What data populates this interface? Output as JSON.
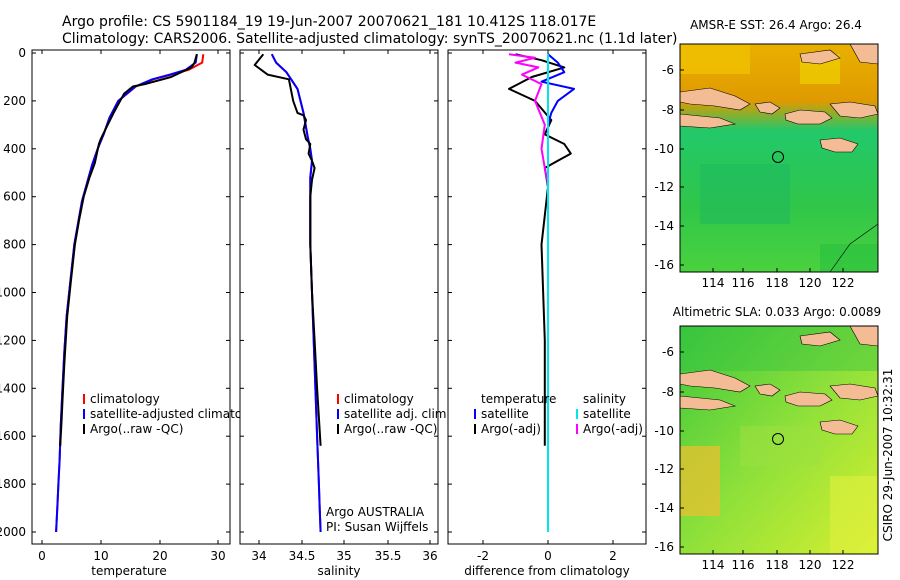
{
  "title_line1": "Argo profile: CS 5901184_19 19-Jun-2007 20070621_181 10.412S 118.017E",
  "title_line2": "Climatology: CARS2006. Satellite-adjusted climatology: synTS_20070621.nc (1.1d later)",
  "side_label": "CSIRO 29-Jun-2007 10:32:31",
  "colors": {
    "climatology": "#ff0000",
    "satellite": "#0000ff",
    "argo": "#000000",
    "sat_salinity": "#00e5ee",
    "argo_salinity": "#ff00ff",
    "land": "#f4bc94"
  },
  "chart_data": [
    {
      "type": "line",
      "xlabel": "temperature",
      "xticks": [
        "0",
        "10",
        "20",
        "30"
      ],
      "yticks": [
        "0",
        "200",
        "400",
        "600",
        "800",
        "1000",
        "1200",
        "1400",
        "1600",
        "1800",
        "2000"
      ],
      "xlim": [
        -3,
        32
      ],
      "ylim": [
        2050,
        0
      ],
      "legend": [
        "climatology",
        "satellite-adjusted climatology",
        "Argo(..raw -QC)"
      ],
      "series": [
        {
          "name": "climatology",
          "x": [
            27.5,
            27.3,
            25.0,
            22.0,
            19.0,
            16.0,
            13.0,
            11.5,
            10.5,
            9.5,
            8.5,
            7.6,
            6.8,
            5.5,
            4.8,
            4.2,
            3.8,
            3.5,
            3.2,
            3.0,
            2.8,
            2.6,
            2.4
          ],
          "y": [
            5,
            40,
            70,
            90,
            110,
            140,
            200,
            270,
            340,
            400,
            470,
            550,
            620,
            800,
            960,
            1100,
            1250,
            1400,
            1550,
            1700,
            1800,
            1900,
            2000
          ]
        },
        {
          "name": "satellite-adjusted climatology",
          "x": [
            26.4,
            26.2,
            24.5,
            21.8,
            18.8,
            15.9,
            13.0,
            11.5,
            10.5,
            9.5,
            8.5,
            7.6,
            6.8,
            5.5,
            4.8,
            4.2,
            3.8,
            3.5,
            3.2,
            3.0,
            2.8,
            2.6,
            2.4
          ],
          "y": [
            5,
            40,
            70,
            90,
            110,
            140,
            200,
            270,
            340,
            400,
            470,
            550,
            620,
            800,
            960,
            1100,
            1250,
            1400,
            1550,
            1700,
            1800,
            1900,
            2000
          ]
        },
        {
          "name": "Argo(..raw -QC)",
          "x": [
            26.4,
            26.0,
            25.5,
            22.0,
            17.5,
            15.5,
            14.0,
            12.2,
            11.2,
            10.0,
            9.7,
            9.0,
            8.1,
            7.1,
            6.3,
            5.6,
            4.9,
            4.3,
            3.8,
            3.5,
            3.3,
            3.1
          ],
          "y": [
            5,
            40,
            60,
            100,
            130,
            140,
            170,
            250,
            300,
            360,
            380,
            460,
            520,
            600,
            700,
            800,
            960,
            1100,
            1300,
            1450,
            1550,
            1640
          ]
        }
      ]
    },
    {
      "type": "line",
      "xlabel": "salinity",
      "xticks": [
        "34",
        "34.5",
        "35",
        "35.5",
        "36"
      ],
      "xlim": [
        33.8,
        36.2
      ],
      "ylim": [
        2050,
        0
      ],
      "legend": [
        "climatology",
        "satellite adj. clim.",
        "Argo(..raw -QC)"
      ],
      "series": [
        {
          "name": "climatology",
          "x": [
            34.15,
            34.2,
            34.32,
            34.45,
            34.52,
            34.57,
            34.6,
            34.62,
            34.6,
            34.6,
            34.6,
            34.62,
            34.64,
            34.66,
            34.68,
            34.7,
            34.71,
            34.72
          ],
          "y": [
            5,
            40,
            80,
            150,
            250,
            350,
            400,
            450,
            520,
            600,
            800,
            1000,
            1200,
            1400,
            1600,
            1800,
            1900,
            2000
          ]
        },
        {
          "name": "satellite adj. clim.",
          "x": [
            34.15,
            34.2,
            34.32,
            34.45,
            34.52,
            34.57,
            34.6,
            34.62,
            34.6,
            34.6,
            34.6,
            34.62,
            34.64,
            34.66,
            34.68,
            34.7,
            34.71,
            34.72
          ],
          "y": [
            5,
            40,
            80,
            150,
            250,
            350,
            400,
            450,
            520,
            600,
            800,
            1000,
            1200,
            1400,
            1600,
            1800,
            1900,
            2000
          ]
        },
        {
          "name": "Argo(..raw -QC)",
          "x": [
            34.05,
            33.95,
            34.1,
            34.35,
            34.4,
            34.45,
            34.52,
            34.55,
            34.52,
            34.55,
            34.6,
            34.58,
            34.62,
            34.65,
            34.62,
            34.6,
            34.6,
            34.62,
            34.65,
            34.68,
            34.72
          ],
          "y": [
            5,
            50,
            90,
            110,
            200,
            250,
            260,
            280,
            320,
            360,
            380,
            420,
            450,
            480,
            530,
            600,
            800,
            1000,
            1200,
            1400,
            1640
          ]
        }
      ],
      "annotation": [
        "Argo AUSTRALIA",
        "PI: Susan Wijffels"
      ]
    },
    {
      "type": "line",
      "xlabel": "difference from climatology",
      "xticks": [
        "-2",
        "0",
        "2"
      ],
      "xlim": [
        -3,
        3
      ],
      "ylim": [
        2050,
        0
      ],
      "legend_left": [
        "temperature",
        "satellite",
        "Argo(-adj)"
      ],
      "legend_right": [
        "salinity",
        "satellite",
        "Argo(-adj)"
      ],
      "series": [
        {
          "name": "satellite",
          "x": [
            0,
            0.3,
            0.5,
            -0.2,
            0.8,
            0.3,
            0.1,
            0,
            0
          ],
          "y": [
            5,
            40,
            80,
            120,
            150,
            200,
            250,
            300,
            2000
          ]
        },
        {
          "name": "satellite",
          "x": [
            0,
            0,
            0,
            0
          ],
          "y": [
            5,
            600,
            1200,
            2000
          ]
        },
        {
          "name": "Argo(-adj)",
          "x": [
            -1.0,
            -0.2,
            0.5,
            -0.5,
            -1.2,
            -0.4,
            0.1,
            -0.1,
            0.5,
            0.7,
            0.3,
            -0.1,
            0,
            -0.2,
            -0.1,
            -0.1
          ],
          "y": [
            5,
            30,
            60,
            100,
            150,
            200,
            280,
            340,
            380,
            420,
            450,
            480,
            560,
            800,
            1200,
            1640
          ]
        },
        {
          "name": "Argo(-adj)",
          "x": [
            -1.2,
            -0.4,
            -1.0,
            -0.3,
            -0.8,
            -0.2,
            -0.4,
            -0.1,
            -0.2,
            -0.1,
            0,
            0,
            0,
            0
          ],
          "y": [
            5,
            20,
            40,
            60,
            90,
            130,
            200,
            300,
            400,
            480,
            550,
            700,
            1200,
            1640
          ]
        }
      ]
    },
    {
      "type": "heatmap",
      "title": "AMSR-E SST: 26.4  Argo: 26.4",
      "xticks": [
        "114",
        "116",
        "118",
        "120",
        "122"
      ],
      "yticks": [
        "-6",
        "-8",
        "-10",
        "-12",
        "-14",
        "-16"
      ],
      "xlim": [
        112.8,
        123.4
      ],
      "ylim": [
        -16.5,
        -5.0
      ],
      "argo_position": [
        118.017,
        -10.412
      ]
    },
    {
      "type": "heatmap",
      "title": "Altimetric SLA: 0.033  Argo: 0.0089",
      "xticks": [
        "114",
        "116",
        "118",
        "120",
        "122"
      ],
      "yticks": [
        "-6",
        "-8",
        "-10",
        "-12",
        "-14",
        "-16"
      ],
      "xlim": [
        112.8,
        123.4
      ],
      "ylim": [
        -16.5,
        -5.0
      ],
      "argo_position": [
        118.017,
        -10.412
      ]
    }
  ]
}
